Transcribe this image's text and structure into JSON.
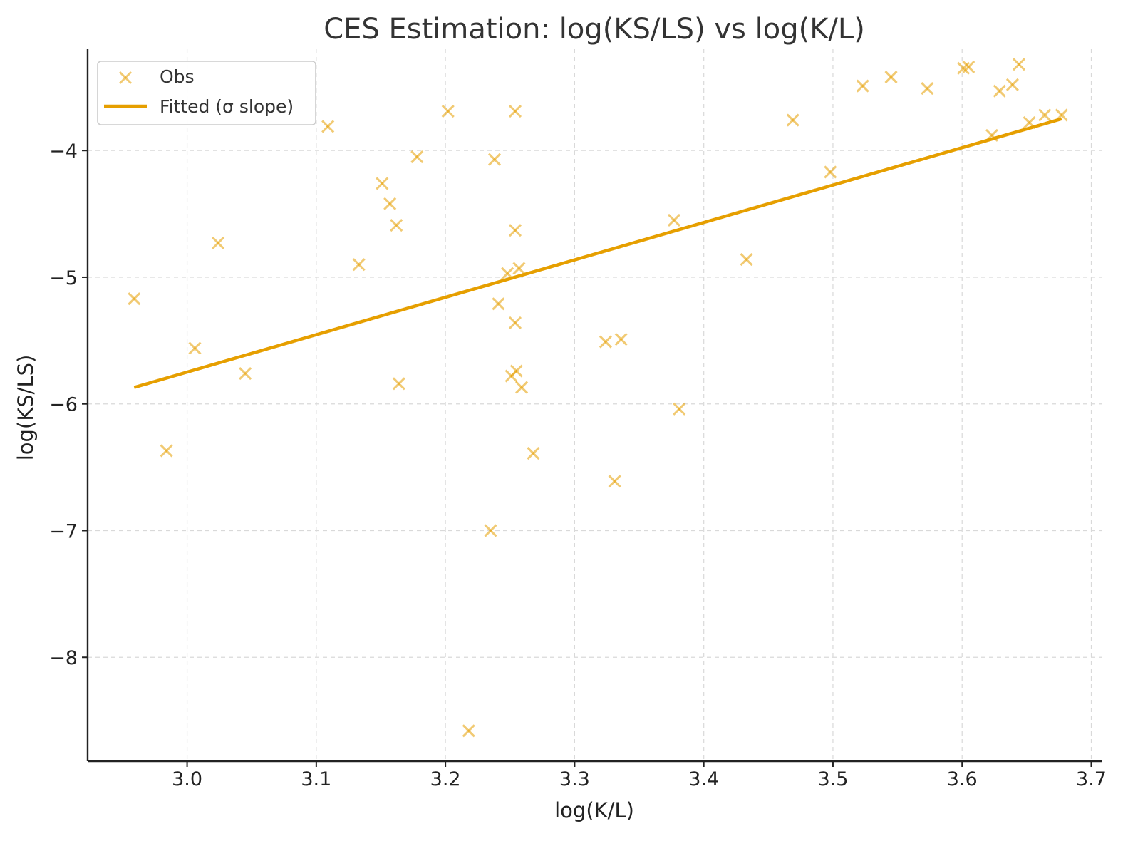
{
  "chart_data": {
    "type": "scatter",
    "title": "CES Estimation: log(KS/LS) vs log(K/L)",
    "xlabel": "log(K/L)",
    "ylabel": "log(KS/LS)",
    "xlim": [
      2.923,
      3.708
    ],
    "ylim": [
      -8.82,
      -3.2
    ],
    "grid": true,
    "legend_position": "top-left",
    "x_ticks": [
      3.0,
      3.1,
      3.2,
      3.3,
      3.4,
      3.5,
      3.6,
      3.7
    ],
    "x_tick_labels": [
      "3.0",
      "3.1",
      "3.2",
      "3.3",
      "3.4",
      "3.5",
      "3.6",
      "3.7"
    ],
    "y_ticks": [
      -8,
      -7,
      -6,
      -5,
      -4
    ],
    "y_tick_labels": [
      "−8",
      "−7",
      "−6",
      "−5",
      "−4"
    ],
    "colors": {
      "scatter": "#E69F00",
      "scatter_opacity": 0.55,
      "line": "#E69F00"
    },
    "series": [
      {
        "name": "Obs",
        "type": "scatter",
        "marker": "x",
        "x": [
          2.959,
          2.984,
          3.006,
          3.024,
          3.045,
          3.109,
          3.133,
          3.151,
          3.157,
          3.162,
          3.164,
          3.178,
          3.202,
          3.218,
          3.235,
          3.238,
          3.241,
          3.248,
          3.251,
          3.254,
          3.254,
          3.254,
          3.255,
          3.257,
          3.259,
          3.268,
          3.324,
          3.331,
          3.336,
          3.377,
          3.381,
          3.433,
          3.469,
          3.498,
          3.523,
          3.545,
          3.573,
          3.601,
          3.605,
          3.623,
          3.629,
          3.639,
          3.644,
          3.652,
          3.664,
          3.677
        ],
        "y": [
          -5.17,
          -6.37,
          -5.56,
          -4.73,
          -5.76,
          -3.81,
          -4.9,
          -4.26,
          -4.42,
          -4.59,
          -5.84,
          -4.05,
          -3.69,
          -8.58,
          -7.0,
          -4.07,
          -5.21,
          -4.97,
          -5.78,
          -3.69,
          -4.63,
          -5.36,
          -5.74,
          -4.93,
          -5.87,
          -6.39,
          -5.51,
          -6.61,
          -5.49,
          -4.55,
          -6.04,
          -4.86,
          -3.76,
          -4.17,
          -3.49,
          -3.42,
          -3.51,
          -3.35,
          -3.34,
          -3.88,
          -3.53,
          -3.48,
          -3.32,
          -3.78,
          -3.72,
          -3.72
        ]
      },
      {
        "name": "Fitted (σ slope)",
        "type": "line",
        "x": [
          2.959,
          3.677
        ],
        "y": [
          -5.87,
          -3.75
        ]
      }
    ]
  }
}
